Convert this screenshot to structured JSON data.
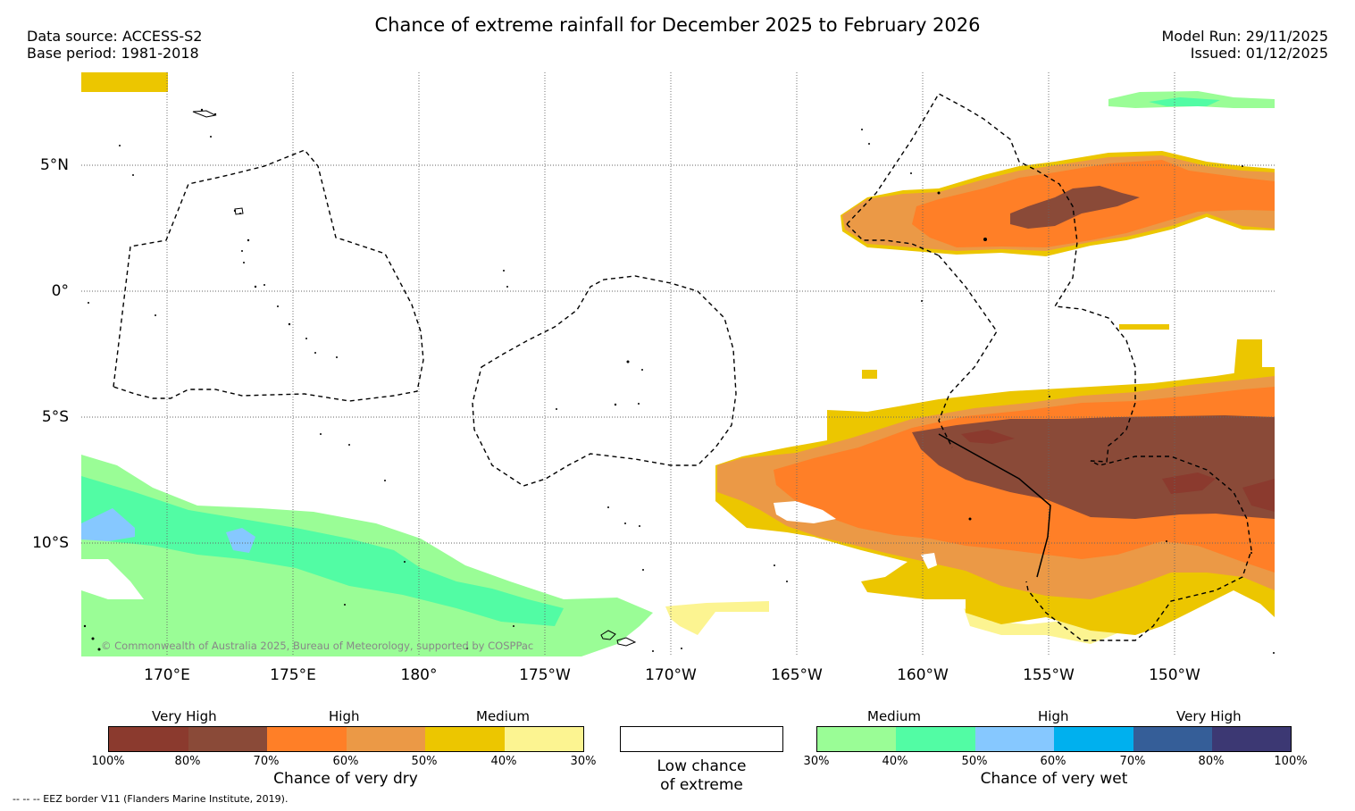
{
  "title": "Chance of extreme rainfall for December 2025 to February 2026",
  "data_source": "Data source: ACCESS-S2",
  "base_period": "Base period: 1981-2018",
  "model_run": "Model Run: 29/11/2025",
  "issued": "Issued: 01/12/2025",
  "lat_labels": [
    "5°N",
    "0°",
    "5°S",
    "10°S"
  ],
  "lon_labels": [
    "170°E",
    "175°E",
    "180°",
    "175°W",
    "170°W",
    "165°W",
    "160°W",
    "155°W",
    "150°W"
  ],
  "copyright": "© Commonwealth of Australia 2025, Bureau of Meteorology, supported by COSPPac",
  "footnote": "--  --  -- EEZ border V11 (Flanders Marine Institute, 2019).",
  "colors": {
    "dry": [
      "#8b3a2e",
      "#8a4a38",
      "#ff7f27",
      "#eb9946",
      "#ecc600",
      "#fcf491"
    ],
    "wet": [
      "#9afd96",
      "#52fca4",
      "#86c8ff",
      "#00b0ee",
      "#355e98",
      "#3c3873"
    ]
  },
  "legend": {
    "dry": {
      "levels": [
        "Very High",
        "High",
        "Medium"
      ],
      "ticks": [
        "100%",
        "80%",
        "70%",
        "60%",
        "50%",
        "40%",
        "30%"
      ],
      "caption": "Chance of very dry"
    },
    "neutral": {
      "caption_line1": "Low chance",
      "caption_line2": "of extreme"
    },
    "wet": {
      "levels": [
        "Medium",
        "High",
        "Very High"
      ],
      "ticks": [
        "30%",
        "40%",
        "50%",
        "60%",
        "70%",
        "80%",
        "100%"
      ],
      "caption": "Chance of very wet"
    }
  }
}
